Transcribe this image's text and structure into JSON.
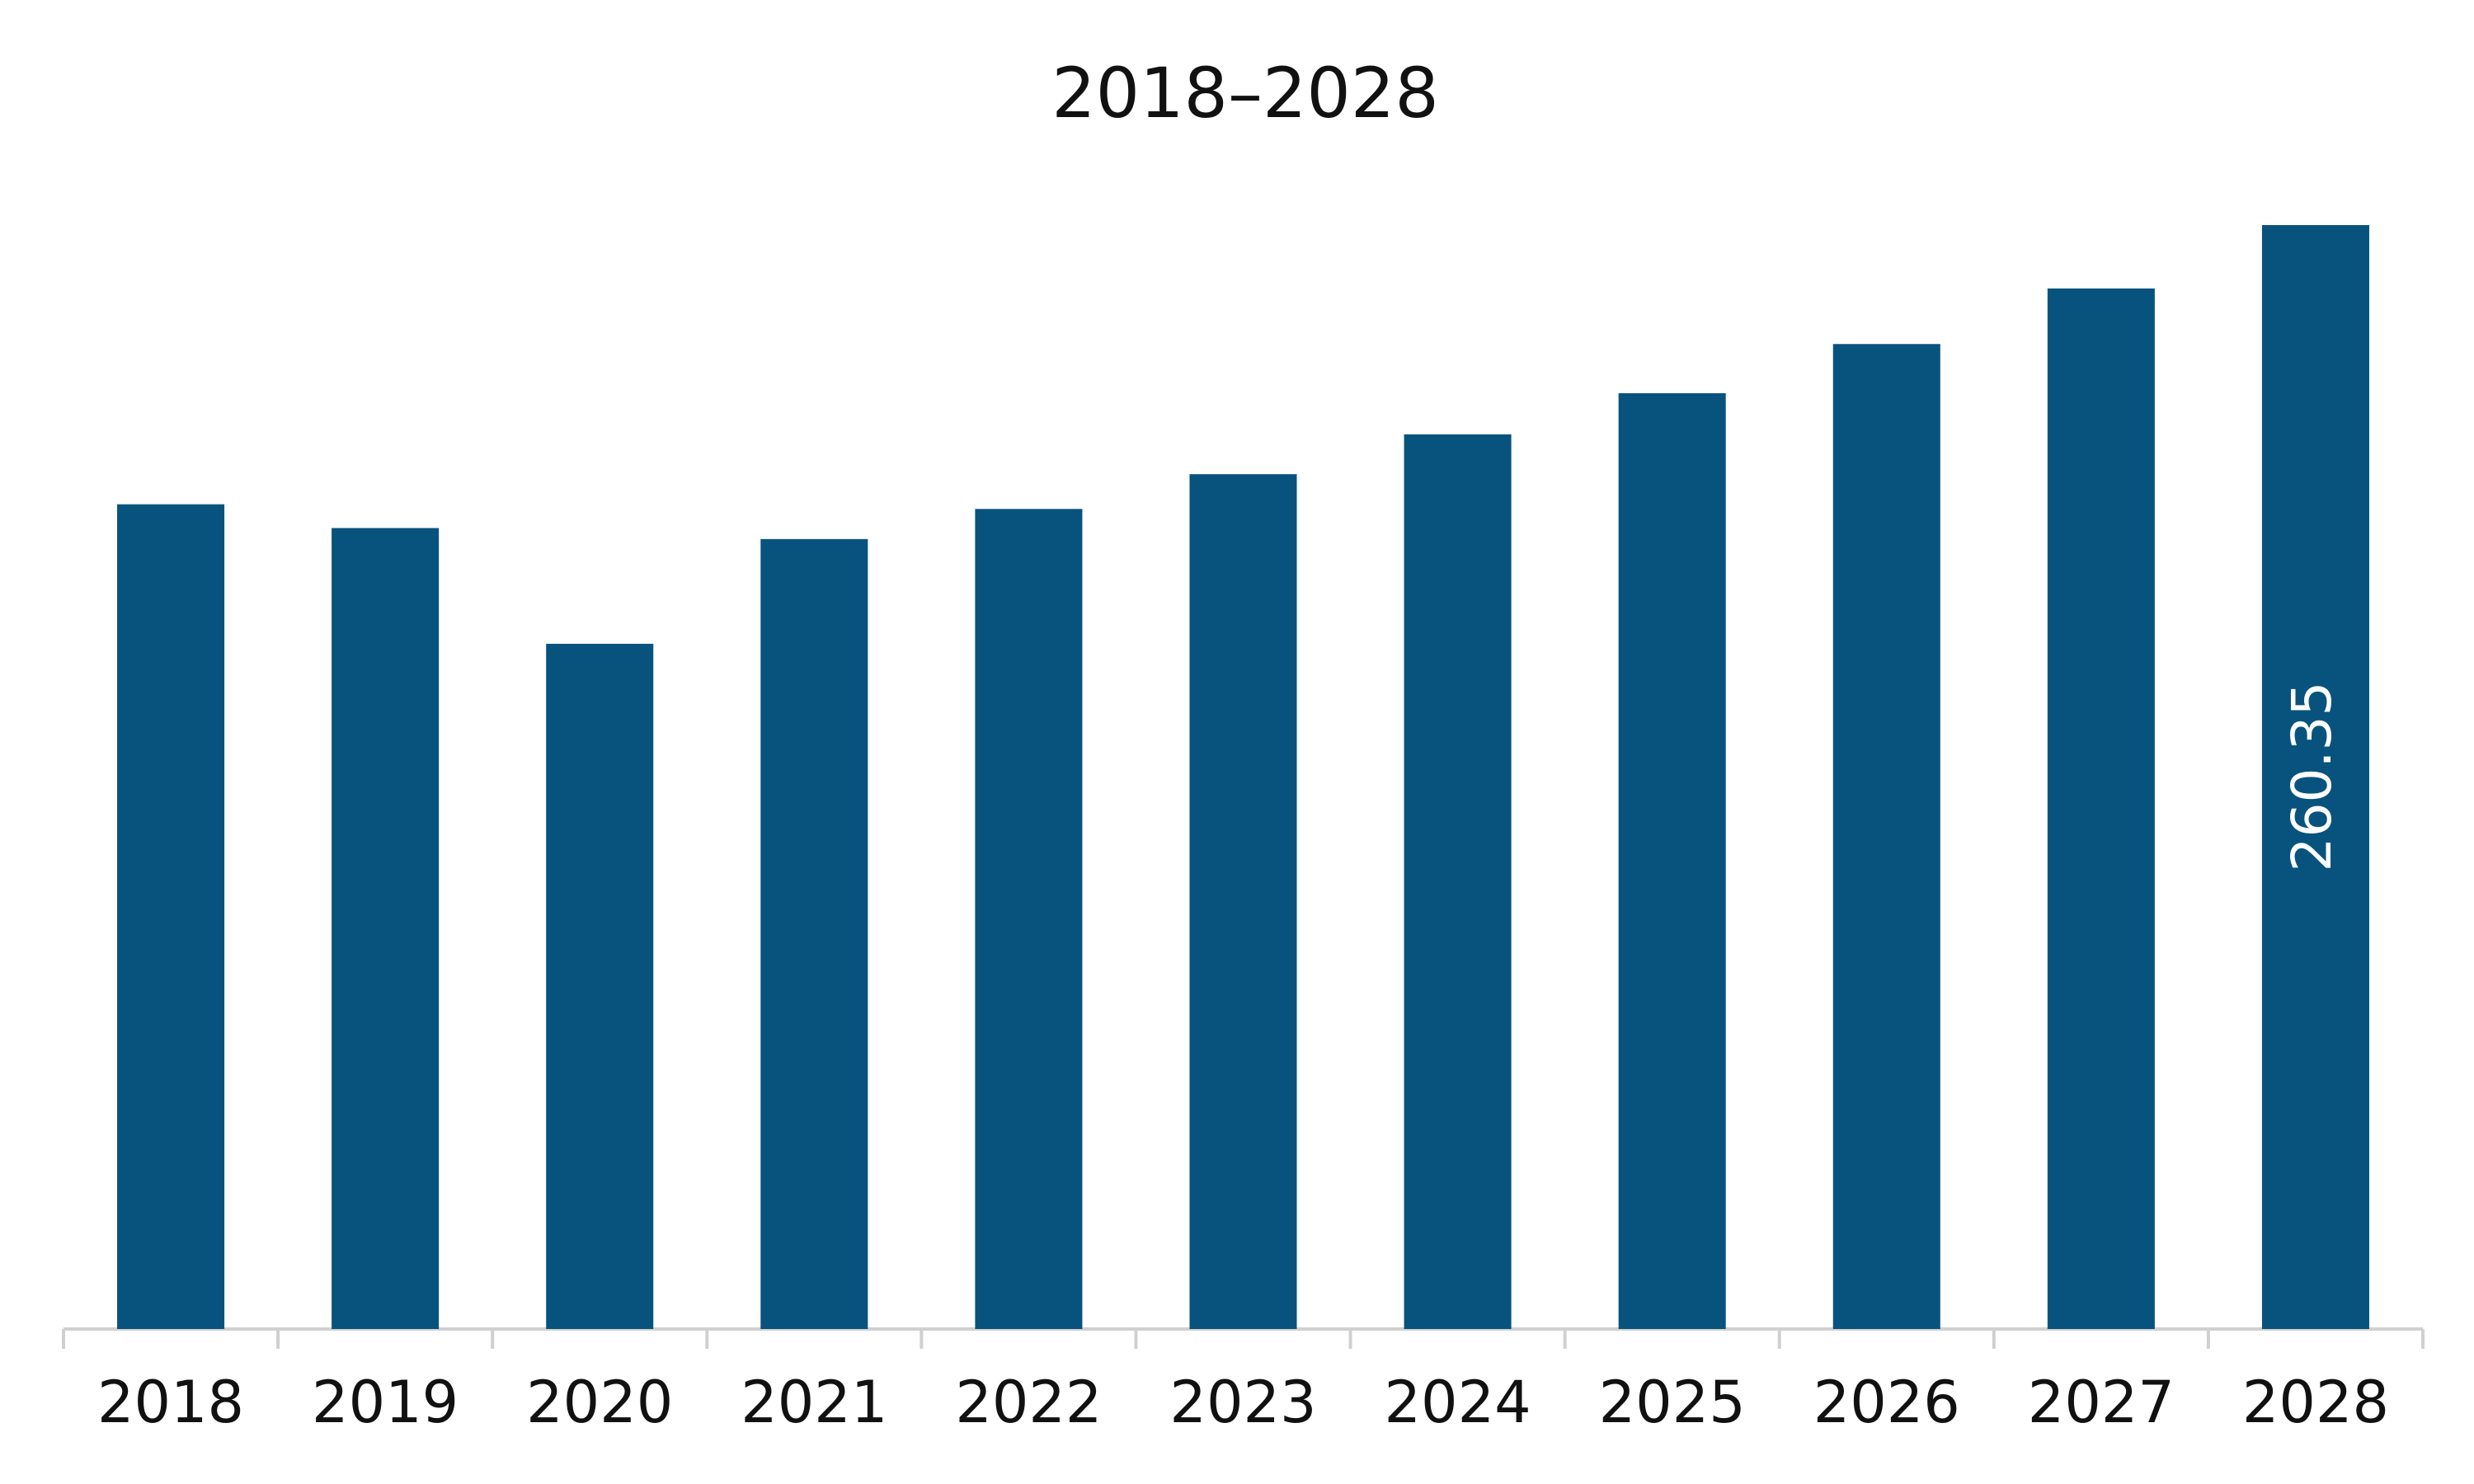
{
  "chart_data": {
    "type": "bar",
    "title": "2018–2028",
    "categories": [
      "2018",
      "2019",
      "2020",
      "2021",
      "2022",
      "2023",
      "2024",
      "2025",
      "2026",
      "2027",
      "2028"
    ],
    "values": [
      194.5,
      188.9,
      161.6,
      186.3,
      193.4,
      201.6,
      211.0,
      220.7,
      232.3,
      245.4,
      260.35
    ],
    "labeled": [
      10
    ],
    "color": "#08537e"
  }
}
